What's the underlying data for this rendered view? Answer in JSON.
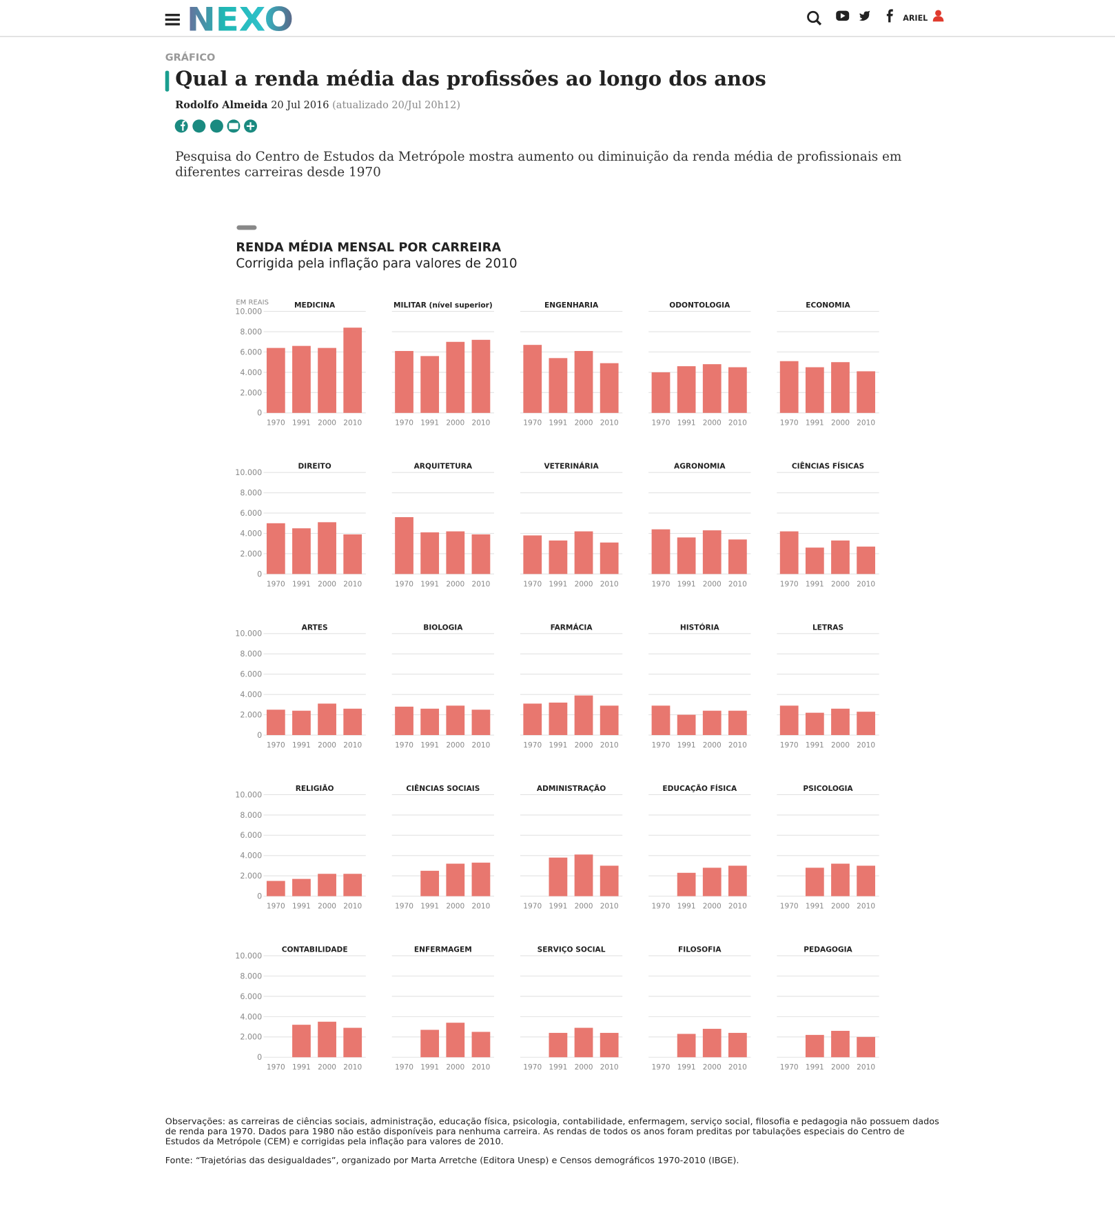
{
  "header": {
    "logo": "NEXO",
    "user": "ARIEL"
  },
  "article": {
    "section": "GRÁFICO",
    "title": "Qual a renda média das profissões ao longo dos anos",
    "author": "Rodolfo Almeida",
    "date": "20 Jul 2016",
    "updated": "(atualizado 20/Jul 20h12)",
    "lede": "Pesquisa do Centro de Estudos da Metrópole mostra aumento ou diminuição da renda média de profissionais em diferentes carreiras desde 1970"
  },
  "graphic": {
    "title": "RENDA MÉDIA MENSAL POR CARREIRA",
    "subtitle": "Corrigida pela inflação para valores de 2010"
  },
  "chart_data": [
    {
      "type": "bar",
      "title": "MEDICINA",
      "y_label": "EM REAIS",
      "categories": [
        "1970",
        "1991",
        "2000",
        "2010"
      ],
      "values": [
        6400,
        6600,
        6400,
        8400
      ],
      "color": "#e8776f",
      "ylim": [
        0,
        10000
      ],
      "yticks": [
        0,
        {
          "value": 2000,
          "label": "2.000"
        },
        {
          "value": 4000,
          "label": "4.000"
        },
        {
          "value": 6000,
          "label": "6.000"
        },
        {
          "value": 8000,
          "label": "8.000"
        },
        {
          "value": 10000,
          "label": "10.000"
        }
      ],
      "grid": true
    },
    {
      "type": "bar",
      "title": "MILITAR (nível superior)",
      "categories": [
        "1970",
        "1991",
        "2000",
        "2010"
      ],
      "values": [
        6100,
        5600,
        7000,
        7200
      ],
      "color": "#e8776f",
      "ylim": [
        0,
        10000
      ],
      "yticks": [
        0,
        2000,
        4000,
        6000,
        8000,
        10000
      ],
      "grid": true
    },
    {
      "type": "bar",
      "title": "ENGENHARIA",
      "categories": [
        "1970",
        "1991",
        "2000",
        "2010"
      ],
      "values": [
        6700,
        5400,
        6100,
        4900
      ],
      "color": "#e8776f",
      "ylim": [
        0,
        10000
      ],
      "yticks": [
        0,
        2000,
        4000,
        6000,
        8000,
        10000
      ],
      "grid": true
    },
    {
      "type": "bar",
      "title": "ODONTOLOGIA",
      "categories": [
        "1970",
        "1991",
        "2000",
        "2010"
      ],
      "values": [
        4000,
        4600,
        4800,
        4500
      ],
      "color": "#e8776f",
      "ylim": [
        0,
        10000
      ],
      "yticks": [
        0,
        2000,
        4000,
        6000,
        8000,
        10000
      ],
      "grid": true
    },
    {
      "type": "bar",
      "title": "ECONOMIA",
      "categories": [
        "1970",
        "1991",
        "2000",
        "2010"
      ],
      "values": [
        5100,
        4500,
        5000,
        4100
      ],
      "color": "#e8776f",
      "ylim": [
        0,
        10000
      ],
      "yticks": [
        0,
        2000,
        4000,
        6000,
        8000,
        10000
      ],
      "grid": true
    },
    {
      "type": "bar",
      "title": "DIREITO",
      "categories": [
        "1970",
        "1991",
        "2000",
        "2010"
      ],
      "values": [
        5000,
        4500,
        5100,
        3900
      ],
      "color": "#e8776f",
      "ylim": [
        0,
        10000
      ],
      "yticks": [
        0,
        {
          "value": 2000,
          "label": "2.000"
        },
        {
          "value": 4000,
          "label": "4.000"
        },
        {
          "value": 6000,
          "label": "6.000"
        },
        {
          "value": 8000,
          "label": "8.000"
        },
        {
          "value": 10000,
          "label": "10.000"
        }
      ],
      "grid": true
    },
    {
      "type": "bar",
      "title": "ARQUITETURA",
      "categories": [
        "1970",
        "1991",
        "2000",
        "2010"
      ],
      "values": [
        5600,
        4100,
        4200,
        3900
      ],
      "color": "#e8776f",
      "ylim": [
        0,
        10000
      ],
      "yticks": [
        0,
        2000,
        4000,
        6000,
        8000,
        10000
      ],
      "grid": true
    },
    {
      "type": "bar",
      "title": "VETERINÁRIA",
      "categories": [
        "1970",
        "1991",
        "2000",
        "2010"
      ],
      "values": [
        3800,
        3300,
        4200,
        3100
      ],
      "color": "#e8776f",
      "ylim": [
        0,
        10000
      ],
      "yticks": [
        0,
        2000,
        4000,
        6000,
        8000,
        10000
      ],
      "grid": true
    },
    {
      "type": "bar",
      "title": "AGRONOMIA",
      "categories": [
        "1970",
        "1991",
        "2000",
        "2010"
      ],
      "values": [
        4400,
        3600,
        4300,
        3400
      ],
      "color": "#e8776f",
      "ylim": [
        0,
        10000
      ],
      "yticks": [
        0,
        2000,
        4000,
        6000,
        8000,
        10000
      ],
      "grid": true
    },
    {
      "type": "bar",
      "title": "CIÊNCIAS FÍSICAS",
      "categories": [
        "1970",
        "1991",
        "2000",
        "2010"
      ],
      "values": [
        4200,
        2600,
        3300,
        2700
      ],
      "color": "#e8776f",
      "ylim": [
        0,
        10000
      ],
      "yticks": [
        0,
        2000,
        4000,
        6000,
        8000,
        10000
      ],
      "grid": true
    },
    {
      "type": "bar",
      "title": "ARTES",
      "categories": [
        "1970",
        "1991",
        "2000",
        "2010"
      ],
      "values": [
        2500,
        2400,
        3100,
        2600
      ],
      "color": "#e8776f",
      "ylim": [
        0,
        10000
      ],
      "yticks": [
        0,
        {
          "value": 2000,
          "label": "2.000"
        },
        {
          "value": 4000,
          "label": "4.000"
        },
        {
          "value": 6000,
          "label": "6.000"
        },
        {
          "value": 8000,
          "label": "8.000"
        },
        {
          "value": 10000,
          "label": "10.000"
        }
      ],
      "grid": true
    },
    {
      "type": "bar",
      "title": "BIOLOGIA",
      "categories": [
        "1970",
        "1991",
        "2000",
        "2010"
      ],
      "values": [
        2800,
        2600,
        2900,
        2500
      ],
      "color": "#e8776f",
      "ylim": [
        0,
        10000
      ],
      "yticks": [
        0,
        2000,
        4000,
        6000,
        8000,
        10000
      ],
      "grid": true
    },
    {
      "type": "bar",
      "title": "FARMÁCIA",
      "categories": [
        "1970",
        "1991",
        "2000",
        "2010"
      ],
      "values": [
        3100,
        3200,
        3900,
        2900
      ],
      "color": "#e8776f",
      "ylim": [
        0,
        10000
      ],
      "yticks": [
        0,
        2000,
        4000,
        6000,
        8000,
        10000
      ],
      "grid": true
    },
    {
      "type": "bar",
      "title": "HISTÓRIA",
      "categories": [
        "1970",
        "1991",
        "2000",
        "2010"
      ],
      "values": [
        2900,
        2000,
        2400,
        2400
      ],
      "color": "#e8776f",
      "ylim": [
        0,
        10000
      ],
      "yticks": [
        0,
        2000,
        4000,
        6000,
        8000,
        10000
      ],
      "grid": true
    },
    {
      "type": "bar",
      "title": "LETRAS",
      "categories": [
        "1970",
        "1991",
        "2000",
        "2010"
      ],
      "values": [
        2900,
        2200,
        2600,
        2300
      ],
      "color": "#e8776f",
      "ylim": [
        0,
        10000
      ],
      "yticks": [
        0,
        2000,
        4000,
        6000,
        8000,
        10000
      ],
      "grid": true
    },
    {
      "type": "bar",
      "title": "RELIGIÃO",
      "categories": [
        "1970",
        "1991",
        "2000",
        "2010"
      ],
      "values": [
        1500,
        1700,
        2200,
        2200
      ],
      "color": "#e8776f",
      "ylim": [
        0,
        10000
      ],
      "yticks": [
        0,
        {
          "value": 2000,
          "label": "2.000"
        },
        {
          "value": 4000,
          "label": "4.000"
        },
        {
          "value": 6000,
          "label": "6.000"
        },
        {
          "value": 8000,
          "label": "8.000"
        },
        {
          "value": 10000,
          "label": "10.000"
        }
      ],
      "grid": true
    },
    {
      "type": "bar",
      "title": "CIÊNCIAS SOCIAIS",
      "categories": [
        "1970",
        "1991",
        "2000",
        "2010"
      ],
      "values": [
        null,
        2500,
        3200,
        3300
      ],
      "color": "#e8776f",
      "ylim": [
        0,
        10000
      ],
      "yticks": [
        0,
        2000,
        4000,
        6000,
        8000,
        10000
      ],
      "grid": true
    },
    {
      "type": "bar",
      "title": "ADMINISTRAÇÃO",
      "categories": [
        "1970",
        "1991",
        "2000",
        "2010"
      ],
      "values": [
        null,
        3800,
        4100,
        3000
      ],
      "color": "#e8776f",
      "ylim": [
        0,
        10000
      ],
      "yticks": [
        0,
        2000,
        4000,
        6000,
        8000,
        10000
      ],
      "grid": true
    },
    {
      "type": "bar",
      "title": "EDUCAÇÃO FÍSICA",
      "categories": [
        "1970",
        "1991",
        "2000",
        "2010"
      ],
      "values": [
        null,
        2300,
        2800,
        3000
      ],
      "color": "#e8776f",
      "ylim": [
        0,
        10000
      ],
      "yticks": [
        0,
        2000,
        4000,
        6000,
        8000,
        10000
      ],
      "grid": true
    },
    {
      "type": "bar",
      "title": "PSICOLOGIA",
      "categories": [
        "1970",
        "1991",
        "2000",
        "2010"
      ],
      "values": [
        null,
        2800,
        3200,
        3000
      ],
      "color": "#e8776f",
      "ylim": [
        0,
        10000
      ],
      "yticks": [
        0,
        2000,
        4000,
        6000,
        8000,
        10000
      ],
      "grid": true
    },
    {
      "type": "bar",
      "title": "CONTABILIDADE",
      "categories": [
        "1970",
        "1991",
        "2000",
        "2010"
      ],
      "values": [
        null,
        3200,
        3500,
        2900
      ],
      "color": "#e8776f",
      "ylim": [
        0,
        10000
      ],
      "yticks": [
        0,
        {
          "value": 2000,
          "label": "2.000"
        },
        {
          "value": 4000,
          "label": "4.000"
        },
        {
          "value": 6000,
          "label": "6.000"
        },
        {
          "value": 8000,
          "label": "8.000"
        },
        {
          "value": 10000,
          "label": "10.000"
        }
      ],
      "grid": true
    },
    {
      "type": "bar",
      "title": "ENFERMAGEM",
      "categories": [
        "1970",
        "1991",
        "2000",
        "2010"
      ],
      "values": [
        null,
        2700,
        3400,
        2500
      ],
      "color": "#e8776f",
      "ylim": [
        0,
        10000
      ],
      "yticks": [
        0,
        2000,
        4000,
        6000,
        8000,
        10000
      ],
      "grid": true
    },
    {
      "type": "bar",
      "title": "SERVIÇO SOCIAL",
      "categories": [
        "1970",
        "1991",
        "2000",
        "2010"
      ],
      "values": [
        null,
        2400,
        2900,
        2400
      ],
      "color": "#e8776f",
      "ylim": [
        0,
        10000
      ],
      "yticks": [
        0,
        2000,
        4000,
        6000,
        8000,
        10000
      ],
      "grid": true
    },
    {
      "type": "bar",
      "title": "FILOSOFIA",
      "categories": [
        "1970",
        "1991",
        "2000",
        "2010"
      ],
      "values": [
        null,
        2300,
        2800,
        2400
      ],
      "color": "#e8776f",
      "ylim": [
        0,
        10000
      ],
      "yticks": [
        0,
        2000,
        4000,
        6000,
        8000,
        10000
      ],
      "grid": true
    },
    {
      "type": "bar",
      "title": "PEDAGOGIA",
      "categories": [
        "1970",
        "1991",
        "2000",
        "2010"
      ],
      "values": [
        null,
        2200,
        2600,
        2000
      ],
      "color": "#e8776f",
      "ylim": [
        0,
        10000
      ],
      "yticks": [
        0,
        2000,
        4000,
        6000,
        8000,
        10000
      ],
      "grid": true
    }
  ],
  "notes": {
    "observations": "Observações: as carreiras de ciências sociais, administração, educação física, psicologia, contabilidade, enfermagem, serviço social, filosofia e pedagogia não possuem dados de renda para 1970. Dados para 1980 não estão disponíveis para nenhuma carreira. As rendas de todos os anos foram preditas por tabulações especiais do Centro de Estudos da Metrópole (CEM) e corrigidas pela inflação para valores de 2010.",
    "source": "Fonte: “Trajetórias das desigualdades”, organizado por Marta Arretche (Editora Unesp) e Censos demográficos 1970-2010 (IBGE)."
  }
}
